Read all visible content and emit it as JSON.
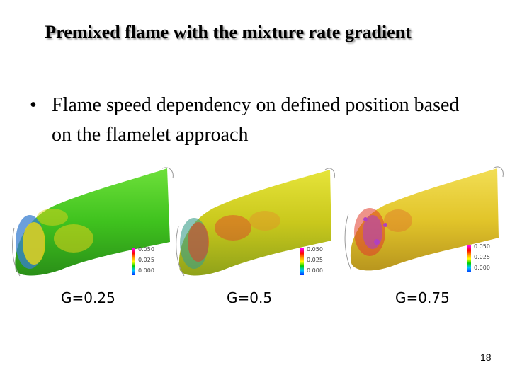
{
  "slide": {
    "title": "Premixed flame with the mixture rate gradient",
    "bullet_symbol": "•",
    "bullet": "Flame speed dependency on defined position based on the flamelet approach",
    "page_number": "18"
  },
  "panels": [
    {
      "caption": "G=0.25",
      "legend": [
        "0.050",
        "0.025",
        "0.000"
      ],
      "base_color": "#3fc21e",
      "highlight_color": "#e0d21a"
    },
    {
      "caption": "G=0.5",
      "legend": [
        "0.050",
        "0.025",
        "0.000"
      ],
      "base_color": "#c9c81c",
      "highlight_color": "#e03a2a"
    },
    {
      "caption": "G=0.75",
      "legend": [
        "0.050",
        "0.025",
        "0.000"
      ],
      "base_color": "#e2c52a",
      "highlight_color": "#b040c0"
    }
  ]
}
